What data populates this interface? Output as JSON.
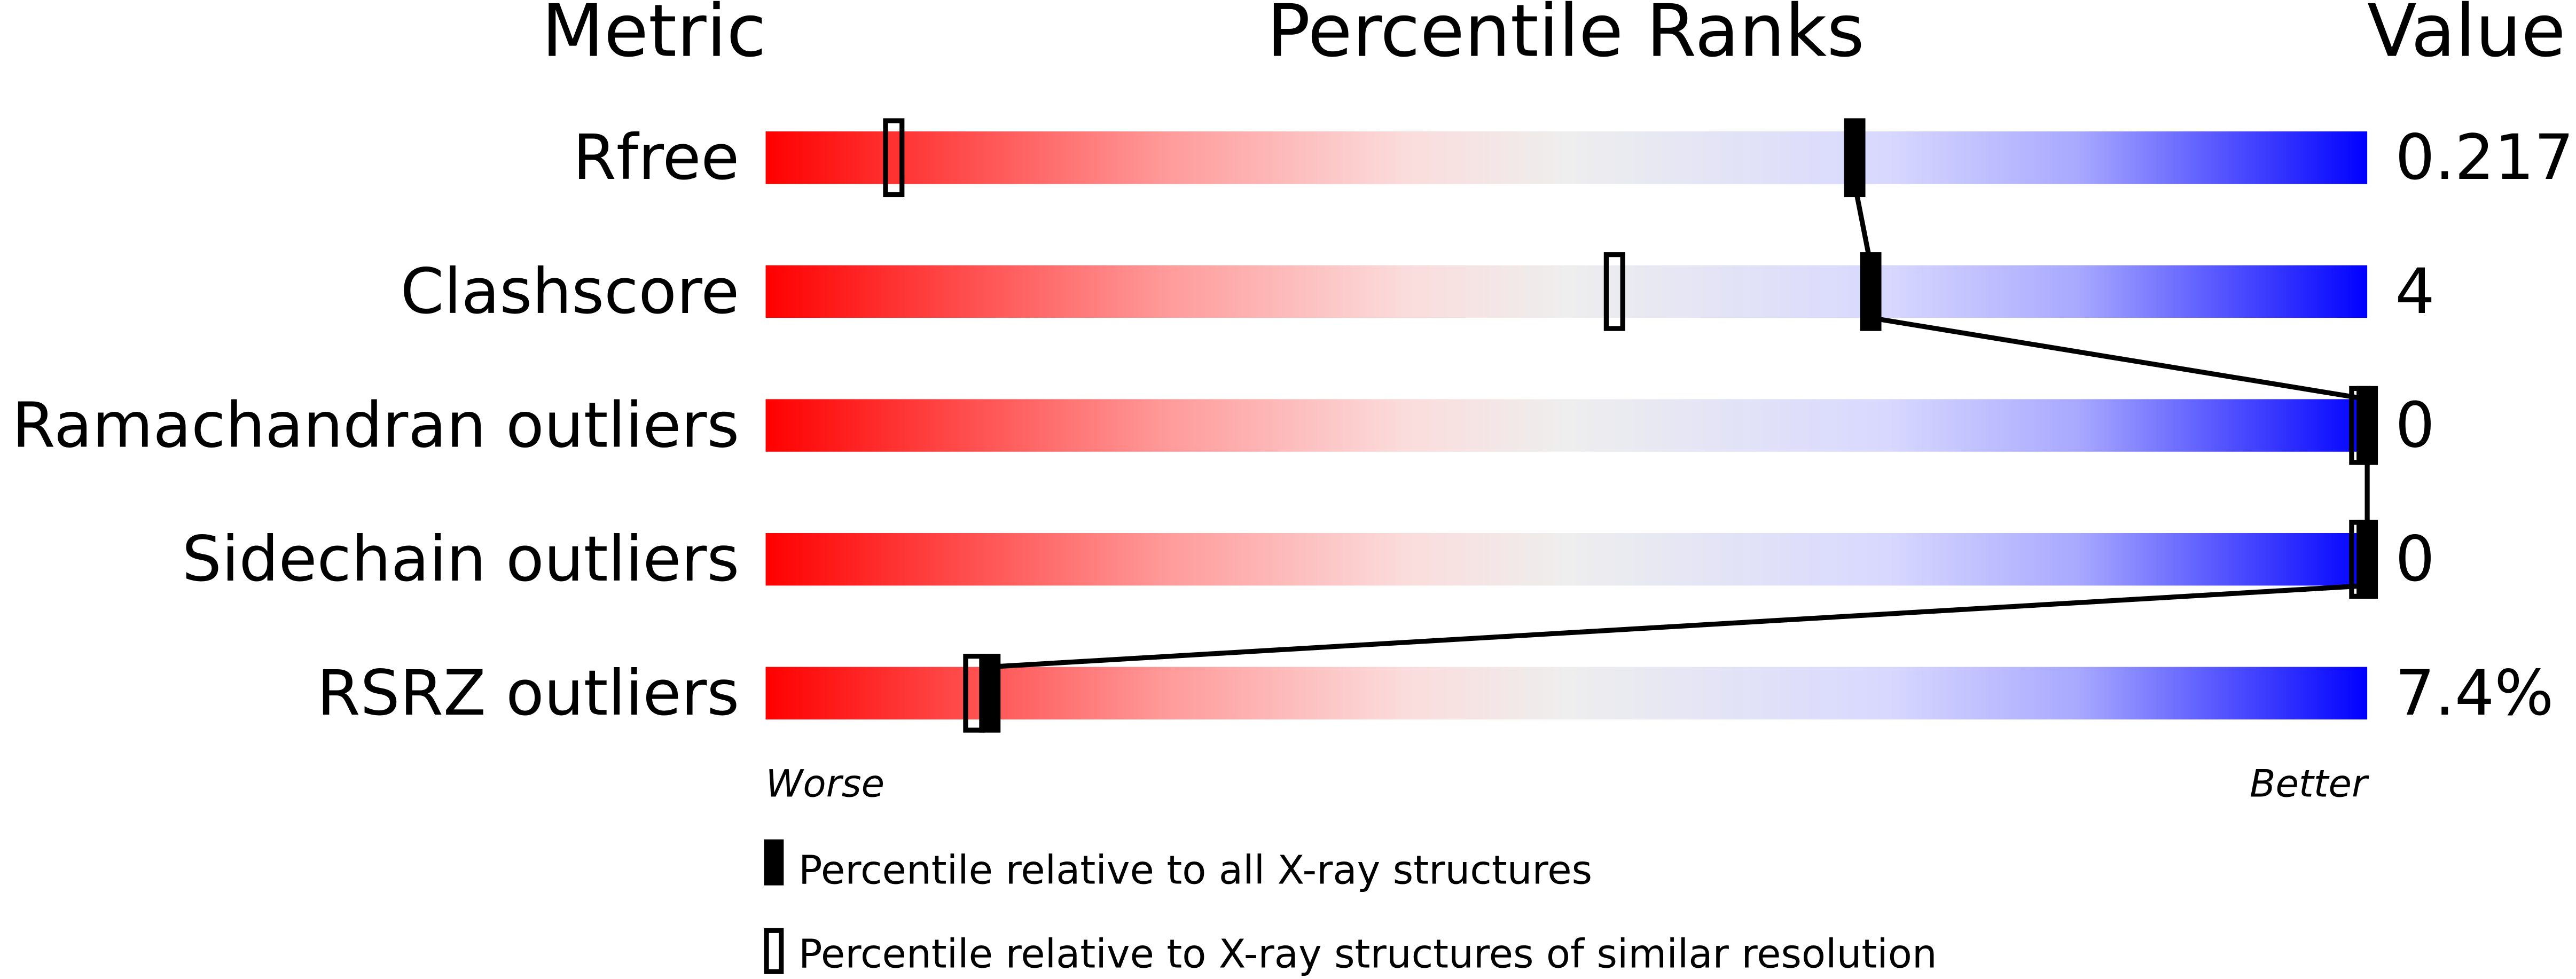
{
  "chart_data": {
    "type": "bar",
    "headers": {
      "metric": "Metric",
      "percentile": "Percentile Ranks",
      "value": "Value"
    },
    "xlim": [
      0,
      100
    ],
    "metrics": [
      {
        "name": "Rfree",
        "value": "0.217",
        "percentile_all": 68,
        "percentile_similar": 8
      },
      {
        "name": "Clashscore",
        "value": "4",
        "percentile_all": 69,
        "percentile_similar": 53
      },
      {
        "name": "Ramachandran outliers",
        "value": "0",
        "percentile_all": 100,
        "percentile_similar": 100
      },
      {
        "name": "Sidechain outliers",
        "value": "0",
        "percentile_all": 100,
        "percentile_similar": 100
      },
      {
        "name": "RSRZ outliers",
        "value": "7.4%",
        "percentile_all": 14,
        "percentile_similar": 13
      }
    ],
    "axis_labels": {
      "left": "Worse",
      "right": "Better"
    },
    "legend": {
      "filled": "Percentile relative to all X-ray structures",
      "open": "Percentile relative to X-ray structures of similar resolution"
    },
    "colors": {
      "worse": "#ff0000",
      "middle": "#eeeeee",
      "better": "#0000ff",
      "marker": "#000000"
    }
  }
}
